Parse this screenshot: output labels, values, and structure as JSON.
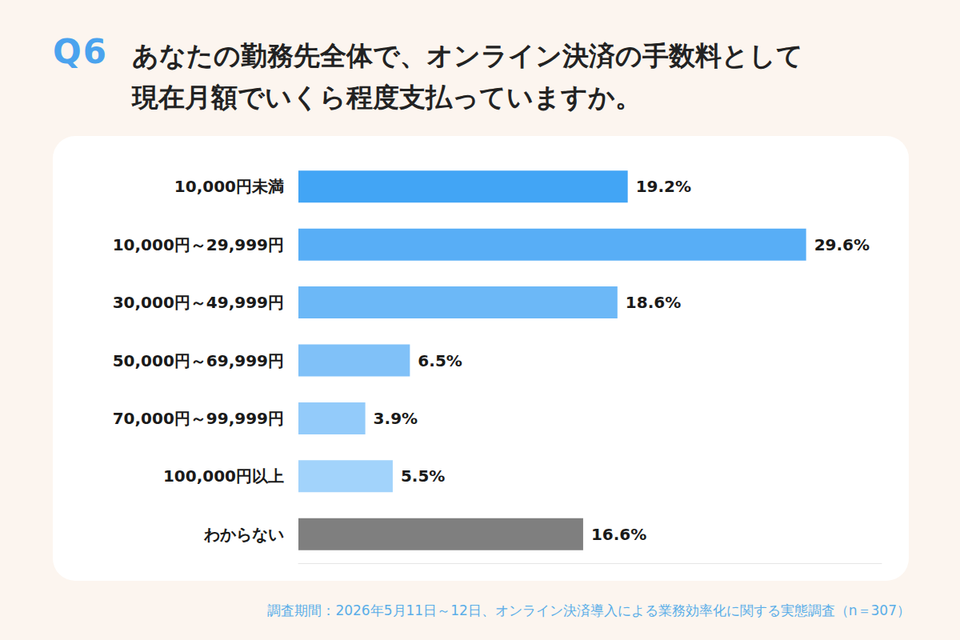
{
  "chart_data": {
    "type": "bar",
    "title": "あなたの勤務先全体で、オンライン決済の手数料として現在月額でいくら程度支払っていますか。",
    "annotations": [
      "Q6",
      "調査期間：2026年5月11日～12日、オンライン決済導入による業務効率化に関する実態調査（n＝307）"
    ],
    "orientation": "horizontal",
    "categories": [
      "10,000円未満",
      "10,000円～29,999円",
      "30,000円～49,999円",
      "50,000円～69,999円",
      "70,000円～99,999円",
      "100,000円以上",
      "わからない"
    ],
    "values": [
      19.2,
      29.6,
      18.6,
      6.5,
      3.9,
      5.5,
      16.6
    ],
    "value_labels": [
      "19.2%",
      "29.6%",
      "18.6%",
      "6.5%",
      "3.9%",
      "5.5%",
      "16.6%"
    ],
    "colors": [
      "#42a5f5",
      "#58aef6",
      "#6cb8f7",
      "#80c1f8",
      "#93cbfa",
      "#a2d3fb",
      "#7f7f7f"
    ],
    "xlim": [
      0,
      34
    ],
    "data_labels": true,
    "tick_labels": "y",
    "grid": false
  }
}
